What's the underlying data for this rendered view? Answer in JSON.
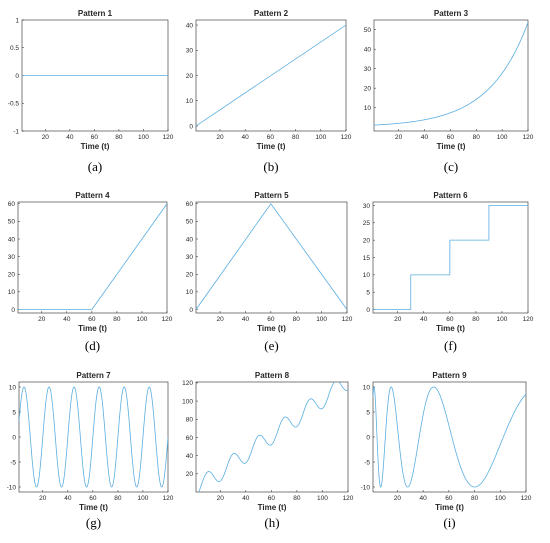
{
  "line_color": "#5aaee0",
  "chart_data": [
    {
      "type": "line",
      "panel": "(a)",
      "title": "Pattern 1",
      "xlabel": "Time (t)",
      "ylabel": "",
      "xlim": [
        1,
        120
      ],
      "ylim": [
        -1,
        1
      ],
      "xticks": [
        20,
        40,
        60,
        80,
        100,
        120
      ],
      "yticks": [
        -1,
        -0.5,
        0,
        0.5,
        1
      ],
      "function": "constant",
      "series": [
        {
          "x": [
            1,
            120
          ],
          "y": [
            0,
            0
          ]
        }
      ]
    },
    {
      "type": "line",
      "panel": "(b)",
      "title": "Pattern 2",
      "xlabel": "Time (t)",
      "ylabel": "",
      "xlim": [
        1,
        120
      ],
      "ylim": [
        -2,
        42
      ],
      "xticks": [
        20,
        40,
        60,
        80,
        100,
        120
      ],
      "yticks": [
        0,
        10,
        20,
        30,
        40
      ],
      "function": "linear",
      "series": [
        {
          "x": [
            1,
            120
          ],
          "y": [
            0,
            40
          ]
        }
      ]
    },
    {
      "type": "line",
      "panel": "(c)",
      "title": "Pattern 3",
      "xlabel": "Time (t)",
      "ylabel": "",
      "xlim": [
        1,
        120
      ],
      "ylim": [
        -2,
        55
      ],
      "xticks": [
        20,
        40,
        60,
        80,
        100,
        120
      ],
      "yticks": [
        10,
        20,
        30,
        40,
        50
      ],
      "function": "exponential",
      "series": [
        {
          "x": [
            1,
            20,
            40,
            60,
            80,
            100,
            120
          ],
          "y": [
            1,
            1.9,
            3.7,
            7.2,
            13.9,
            27,
            53
          ]
        }
      ]
    },
    {
      "type": "line",
      "panel": "(d)",
      "title": "Pattern 4",
      "xlabel": "Time (t)",
      "ylabel": "",
      "xlim": [
        1,
        120
      ],
      "ylim": [
        -2,
        61
      ],
      "xticks": [
        20,
        40,
        60,
        80,
        100,
        120
      ],
      "yticks": [
        0,
        10,
        20,
        30,
        40,
        50,
        60
      ],
      "function": "piecewise_linear",
      "series": [
        {
          "x": [
            1,
            60,
            120
          ],
          "y": [
            0,
            0,
            60
          ]
        }
      ]
    },
    {
      "type": "line",
      "panel": "(e)",
      "title": "Pattern 5",
      "xlabel": "Time (t)",
      "ylabel": "",
      "xlim": [
        1,
        120
      ],
      "ylim": [
        -2,
        61
      ],
      "xticks": [
        20,
        40,
        60,
        80,
        100,
        120
      ],
      "yticks": [
        0,
        10,
        20,
        30,
        40,
        50,
        60
      ],
      "function": "piecewise_linear",
      "series": [
        {
          "x": [
            1,
            60,
            120
          ],
          "y": [
            0,
            60,
            0
          ]
        }
      ]
    },
    {
      "type": "line",
      "panel": "(f)",
      "title": "Pattern 6",
      "xlabel": "Time (t)",
      "ylabel": "",
      "xlim": [
        1,
        120
      ],
      "ylim": [
        -1,
        31
      ],
      "xticks": [
        20,
        40,
        60,
        80,
        100,
        120
      ],
      "yticks": [
        0,
        5,
        10,
        15,
        20,
        25,
        30
      ],
      "function": "step",
      "series": [
        {
          "x": [
            1,
            30,
            30,
            60,
            60,
            90,
            90,
            120
          ],
          "y": [
            0,
            0,
            10,
            10,
            20,
            20,
            30,
            30
          ]
        }
      ]
    },
    {
      "type": "line",
      "panel": "(g)",
      "title": "Pattern 7",
      "xlabel": "Time (t)",
      "ylabel": "",
      "xlim": [
        1,
        120
      ],
      "ylim": [
        -11,
        11
      ],
      "xticks": [
        20,
        40,
        60,
        80,
        100,
        120
      ],
      "yticks": [
        -10,
        -5,
        0,
        5,
        10
      ],
      "function": "sine",
      "amplitude": 10,
      "period": 20,
      "series": []
    },
    {
      "type": "line",
      "panel": "(h)",
      "title": "Pattern 8",
      "xlabel": "Time (t)",
      "ylabel": "",
      "xlim": [
        1,
        120
      ],
      "ylim": [
        0,
        121
      ],
      "xticks": [
        20,
        40,
        60,
        80,
        100,
        120
      ],
      "yticks": [
        20,
        40,
        60,
        80,
        100,
        120
      ],
      "function": "linear_plus_sine",
      "slope": 1,
      "amplitude": 10,
      "period": 20,
      "series": []
    },
    {
      "type": "line",
      "panel": "(i)",
      "title": "Pattern 9",
      "xlabel": "Time (t)",
      "ylabel": "",
      "xlim": [
        1,
        120
      ],
      "ylim": [
        -11,
        11
      ],
      "xticks": [
        20,
        40,
        60,
        80,
        100,
        120
      ],
      "yticks": [
        -10,
        -5,
        0,
        5,
        10
      ],
      "function": "chirp_sine",
      "amplitude": 10,
      "series": []
    }
  ]
}
